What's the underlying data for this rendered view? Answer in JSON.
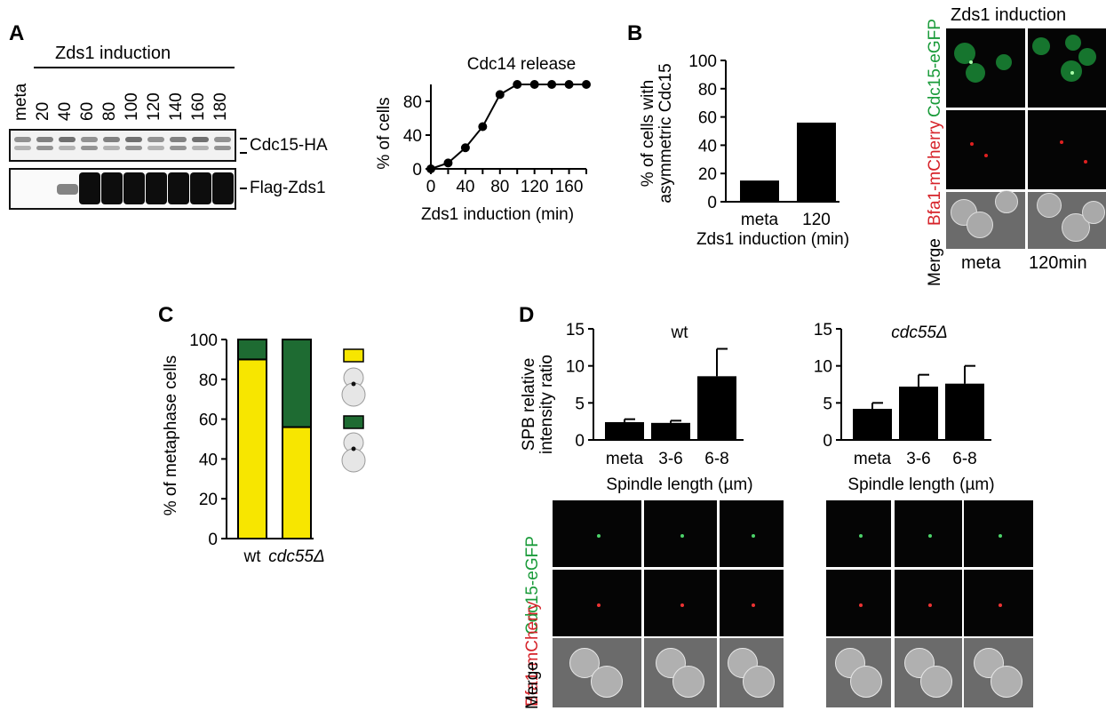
{
  "panels": {
    "A": "A",
    "B": "B",
    "C": "C",
    "D": "D"
  },
  "panelA": {
    "header": "Zds1 induction",
    "lanes": [
      "meta",
      "20",
      "40",
      "60",
      "80",
      "100",
      "120",
      "140",
      "160",
      "180"
    ],
    "blot_labels": [
      "Cdc15-HA",
      "Flag-Zds1"
    ]
  },
  "colors": {
    "green": "#1a9b3a",
    "red": "#d6232a",
    "yellow": "#f7e600",
    "darkgreen": "#1e6b32"
  },
  "chart_data": [
    {
      "id": "cdc14",
      "type": "line",
      "title": "Cdc14 release",
      "xlabel": "Zds1 induction (min)",
      "ylabel": "% of cells",
      "x": [
        0,
        20,
        40,
        60,
        80,
        100,
        120,
        140,
        160,
        180
      ],
      "y": [
        0,
        7,
        25,
        50,
        88,
        100,
        100,
        100,
        100,
        100
      ],
      "xticks": [
        "0",
        "40",
        "80",
        "120",
        "160"
      ],
      "xtick_values": [
        0,
        40,
        80,
        120,
        160
      ],
      "yticks": [
        "0",
        "40",
        "80"
      ],
      "ytick_values": [
        0,
        40,
        80
      ],
      "xlim": [
        0,
        180
      ],
      "ylim": [
        0,
        100
      ]
    },
    {
      "id": "asym",
      "type": "bar",
      "xlabel": "Zds1 induction (min)",
      "ylabel_lines": [
        "% of cells with",
        "asymmetric Cdc15"
      ],
      "categories": [
        "meta",
        "120"
      ],
      "values": [
        15,
        56
      ],
      "yticks": [
        "0",
        "20",
        "40",
        "60",
        "80",
        "100"
      ],
      "ytick_values": [
        0,
        20,
        40,
        60,
        80,
        100
      ],
      "ylim": [
        0,
        100
      ]
    },
    {
      "id": "meta_cells",
      "type": "bar",
      "stacked": true,
      "ylabel": "% of metaphase cells",
      "categories": [
        "wt",
        "cdc55Δ"
      ],
      "series": [
        {
          "color": "#f7e600",
          "values": [
            90,
            56
          ]
        },
        {
          "color": "#1e6b32",
          "values": [
            10,
            44
          ]
        }
      ],
      "yticks": [
        "0",
        "20",
        "40",
        "60",
        "80",
        "100"
      ],
      "ytick_values": [
        0,
        20,
        40,
        60,
        80,
        100
      ],
      "ylim": [
        0,
        100
      ]
    },
    {
      "id": "spb_wt",
      "type": "bar",
      "title": "wt",
      "ylabel_lines": [
        "SPB relative",
        "intensity ratio"
      ],
      "xlabel": "Spindle length (µm)",
      "categories": [
        "meta",
        "3-6",
        "6-8"
      ],
      "values": [
        2.4,
        2.3,
        8.6
      ],
      "errors": [
        0.4,
        0.3,
        3.7
      ],
      "yticks": [
        "0",
        "5",
        "10",
        "15"
      ],
      "ytick_values": [
        0,
        5,
        10,
        15
      ],
      "ylim": [
        0,
        15
      ]
    },
    {
      "id": "spb_cdc55",
      "type": "bar",
      "title": "cdc55Δ",
      "xlabel": "Spindle length (µm)",
      "categories": [
        "meta",
        "3-6",
        "6-8"
      ],
      "values": [
        4.2,
        7.2,
        7.6
      ],
      "errors": [
        0.8,
        1.6,
        2.4
      ],
      "yticks": [
        "0",
        "5",
        "10",
        "15"
      ],
      "ytick_values": [
        0,
        5,
        10,
        15
      ],
      "ylim": [
        0,
        15
      ]
    }
  ],
  "panelB": {
    "micro_header": "Zds1 induction",
    "row_labels": {
      "gfp": "Cdc15-eGFP",
      "mcherry": "Bfa1-mCherry",
      "merge": "Merge"
    },
    "col_labels": [
      "meta",
      "120min"
    ]
  },
  "panelD": {
    "row_labels": {
      "gfp": "Cdc15-eGFP",
      "mcherry": "Bfa1-mCherry",
      "merge": "Merge"
    }
  }
}
